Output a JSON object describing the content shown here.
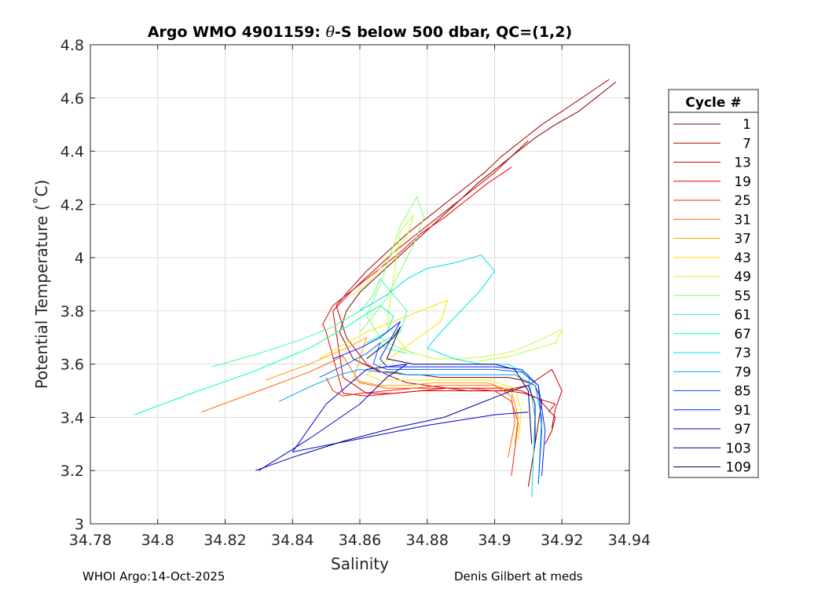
{
  "chart_data": {
    "type": "line",
    "title_prefix": "Argo WMO 4901159: ",
    "title_theta": "θ",
    "title_suffix": "-S below 500 dbar,  QC=(1,2)",
    "xlabel": "Salinity",
    "ylabel": "Potential Temperature (˚C)",
    "xlim": [
      34.78,
      34.94
    ],
    "ylim": [
      3.0,
      4.8
    ],
    "xticks": [
      34.78,
      34.8,
      34.82,
      34.84,
      34.86,
      34.88,
      34.9,
      34.92,
      34.94
    ],
    "yticks": [
      3,
      3.2,
      3.4,
      3.6,
      3.8,
      4,
      4.2,
      4.4,
      4.6,
      4.8
    ],
    "grid": true,
    "legend_title": "Cycle #",
    "legend_placement": "right-outside",
    "series": [
      {
        "name": "1",
        "color": "#800000",
        "x": [
          34.936,
          34.93,
          34.925,
          34.918,
          34.912,
          34.905,
          34.9,
          34.895,
          34.89,
          34.884,
          34.878,
          34.872,
          34.866,
          34.86,
          34.856,
          34.854,
          34.858,
          34.866,
          34.87,
          34.874,
          34.878,
          34.884,
          34.888,
          34.892,
          34.896,
          34.9,
          34.904,
          34.908,
          34.912,
          34.914,
          34.913,
          34.912,
          34.911,
          34.91
        ],
        "y": [
          4.66,
          4.6,
          4.55,
          4.5,
          4.45,
          4.38,
          4.33,
          4.28,
          4.22,
          4.15,
          4.08,
          4.01,
          3.94,
          3.87,
          3.8,
          3.72,
          3.62,
          3.57,
          3.57,
          3.56,
          3.56,
          3.55,
          3.55,
          3.55,
          3.55,
          3.55,
          3.55,
          3.54,
          3.52,
          3.46,
          3.38,
          3.3,
          3.22,
          3.14
        ]
      },
      {
        "name": "7",
        "color": "#b00000",
        "x": [
          34.934,
          34.927,
          34.92,
          34.914,
          34.908,
          34.902,
          34.897,
          34.892,
          34.886,
          34.88,
          34.874,
          34.868,
          34.862,
          34.857,
          34.853,
          34.856,
          34.862,
          34.868,
          34.874,
          34.88,
          34.886,
          34.892,
          34.898,
          34.904,
          34.909,
          34.913,
          34.918,
          34.917,
          34.915
        ],
        "y": [
          4.67,
          4.61,
          4.55,
          4.5,
          4.44,
          4.38,
          4.32,
          4.27,
          4.21,
          4.15,
          4.09,
          4.02,
          3.95,
          3.88,
          3.82,
          3.7,
          3.6,
          3.56,
          3.53,
          3.52,
          3.51,
          3.5,
          3.5,
          3.5,
          3.49,
          3.47,
          3.4,
          3.35,
          3.3
        ]
      },
      {
        "name": "13",
        "color": "#d00000",
        "x": [
          34.91,
          34.905,
          34.9,
          34.894,
          34.888,
          34.882,
          34.876,
          34.87,
          34.864,
          34.858,
          34.852,
          34.855,
          34.862,
          34.87,
          34.878,
          34.886,
          34.894,
          34.902,
          34.91,
          34.917,
          34.92,
          34.918,
          34.917
        ],
        "y": [
          4.44,
          4.38,
          4.32,
          4.26,
          4.2,
          4.14,
          4.08,
          4.02,
          3.95,
          3.88,
          3.8,
          3.55,
          3.49,
          3.49,
          3.5,
          3.5,
          3.5,
          3.5,
          3.52,
          3.58,
          3.5,
          3.43,
          3.36
        ]
      },
      {
        "name": "19",
        "color": "#f00000",
        "x": [
          34.905,
          34.898,
          34.891,
          34.885,
          34.878,
          34.872,
          34.865,
          34.859,
          34.852,
          34.849,
          34.85,
          34.855,
          34.862,
          34.87,
          34.878,
          34.886,
          34.894,
          34.902,
          34.908,
          34.913,
          34.918,
          34.916
        ],
        "y": [
          4.34,
          4.28,
          4.21,
          4.15,
          4.09,
          4.02,
          3.95,
          3.89,
          3.82,
          3.75,
          3.72,
          3.49,
          3.48,
          3.49,
          3.5,
          3.51,
          3.51,
          3.51,
          3.5,
          3.47,
          3.45,
          3.42
        ]
      },
      {
        "name": "25",
        "color": "#ff2000",
        "x": [
          34.85,
          34.852,
          34.855,
          34.86,
          34.868,
          34.876,
          34.884,
          34.892,
          34.9,
          34.905,
          34.907,
          34.906,
          34.905
        ],
        "y": [
          3.55,
          3.5,
          3.48,
          3.49,
          3.5,
          3.51,
          3.51,
          3.51,
          3.5,
          3.46,
          3.38,
          3.28,
          3.18
        ]
      },
      {
        "name": "31",
        "color": "#ff6000",
        "x": [
          34.813,
          34.83,
          34.845,
          34.855,
          34.86,
          34.868,
          34.876,
          34.884,
          34.892,
          34.9,
          34.905,
          34.906,
          34.904
        ],
        "y": [
          3.42,
          3.5,
          3.57,
          3.63,
          3.53,
          3.51,
          3.51,
          3.52,
          3.52,
          3.52,
          3.48,
          3.38,
          3.25
        ]
      },
      {
        "name": "37",
        "color": "#ffa000",
        "x": [
          34.832,
          34.845,
          34.856,
          34.862,
          34.858,
          34.866,
          34.874,
          34.882,
          34.89,
          34.898,
          34.905,
          34.907,
          34.906
        ],
        "y": [
          3.54,
          3.6,
          3.66,
          3.7,
          3.54,
          3.52,
          3.52,
          3.53,
          3.53,
          3.53,
          3.5,
          3.4,
          3.3
        ]
      },
      {
        "name": "43",
        "color": "#ffdf00",
        "x": [
          34.848,
          34.856,
          34.862,
          34.87,
          34.878,
          34.886,
          34.884,
          34.862,
          34.866,
          34.874,
          34.882,
          34.89,
          34.898,
          34.906,
          34.908,
          34.907
        ],
        "y": [
          3.62,
          3.68,
          3.72,
          3.76,
          3.8,
          3.84,
          3.76,
          3.56,
          3.54,
          3.54,
          3.54,
          3.54,
          3.54,
          3.51,
          3.42,
          3.32
        ]
      },
      {
        "name": "49",
        "color": "#c0ff30",
        "x": [
          34.858,
          34.862,
          34.866,
          34.87,
          34.874,
          34.876,
          34.872,
          34.868,
          34.874,
          34.882,
          34.89,
          34.898,
          34.906,
          34.915,
          34.92,
          34.918,
          34.905,
          34.895
        ],
        "y": [
          3.86,
          3.9,
          3.96,
          4.02,
          4.08,
          4.16,
          4.1,
          3.75,
          3.65,
          3.62,
          3.62,
          3.63,
          3.65,
          3.7,
          3.73,
          3.68,
          3.63,
          3.61
        ]
      },
      {
        "name": "55",
        "color": "#80ff70",
        "x": [
          34.86,
          34.864,
          34.868,
          34.872,
          34.876,
          34.879,
          34.877,
          34.872,
          34.866,
          34.862,
          34.866,
          34.87,
          34.876
        ],
        "y": [
          3.72,
          3.78,
          3.85,
          3.95,
          4.05,
          4.15,
          4.23,
          4.12,
          3.9,
          3.78,
          3.7,
          3.67,
          3.64
        ]
      },
      {
        "name": "61",
        "color": "#40ff90",
        "x": [
          34.816,
          34.83,
          34.842,
          34.852,
          34.86,
          34.864,
          34.866,
          34.87,
          34.874,
          34.872,
          34.866,
          34.868,
          34.874
        ],
        "y": [
          3.59,
          3.64,
          3.69,
          3.74,
          3.8,
          3.86,
          3.92,
          3.86,
          3.8,
          3.72,
          3.68,
          3.66,
          3.64
        ]
      },
      {
        "name": "67",
        "color": "#00ffb0",
        "x": [
          34.793,
          34.81,
          34.828,
          34.845,
          34.856,
          34.862,
          34.866,
          34.87,
          34.868,
          34.862
        ],
        "y": [
          3.41,
          3.49,
          3.57,
          3.66,
          3.74,
          3.79,
          3.82,
          3.78,
          3.72,
          3.68
        ]
      },
      {
        "name": "73",
        "color": "#00e0e0",
        "x": [
          34.86,
          34.868,
          34.874,
          34.88,
          34.888,
          34.896,
          34.9,
          34.896,
          34.89,
          34.884,
          34.88,
          34.888,
          34.896,
          34.904,
          34.91,
          34.912,
          34.911
        ],
        "y": [
          3.8,
          3.86,
          3.92,
          3.96,
          3.98,
          4.01,
          3.95,
          3.88,
          3.8,
          3.72,
          3.66,
          3.62,
          3.6,
          3.6,
          3.56,
          3.4,
          3.1
        ]
      },
      {
        "name": "79",
        "color": "#00a0ff",
        "x": [
          34.836,
          34.846,
          34.854,
          34.86,
          34.866,
          34.874,
          34.882,
          34.89,
          34.898,
          34.906,
          34.912,
          34.914,
          34.913
        ],
        "y": [
          3.46,
          3.52,
          3.56,
          3.58,
          3.57,
          3.56,
          3.56,
          3.56,
          3.56,
          3.56,
          3.52,
          3.4,
          3.15
        ]
      },
      {
        "name": "85",
        "color": "#0060ff",
        "x": [
          34.848,
          34.856,
          34.862,
          34.866,
          34.864,
          34.868,
          34.876,
          34.884,
          34.892,
          34.9,
          34.908,
          34.913,
          34.914,
          34.913
        ],
        "y": [
          3.55,
          3.6,
          3.64,
          3.68,
          3.6,
          3.58,
          3.58,
          3.58,
          3.58,
          3.58,
          3.57,
          3.52,
          3.35,
          3.15
        ]
      },
      {
        "name": "91",
        "color": "#0020ff",
        "x": [
          34.852,
          34.86,
          34.866,
          34.87,
          34.872,
          34.866,
          34.868,
          34.876,
          34.884,
          34.892,
          34.9,
          34.908,
          34.913,
          34.915,
          34.914
        ],
        "y": [
          3.62,
          3.66,
          3.7,
          3.74,
          3.76,
          3.62,
          3.59,
          3.59,
          3.59,
          3.59,
          3.59,
          3.58,
          3.52,
          3.35,
          3.18
        ]
      },
      {
        "name": "97",
        "color": "#0000d0",
        "x": [
          34.83,
          34.845,
          34.86,
          34.868,
          34.874,
          34.862,
          34.85,
          34.84,
          34.86,
          34.88,
          34.9,
          34.91
        ],
        "y": [
          3.2,
          3.32,
          3.45,
          3.55,
          3.6,
          3.58,
          3.45,
          3.27,
          3.32,
          3.37,
          3.41,
          3.42
        ]
      },
      {
        "name": "103",
        "color": "#000090",
        "x": [
          34.829,
          34.84,
          34.855,
          34.87,
          34.885,
          34.895,
          34.905,
          34.91,
          34.912,
          34.912
        ],
        "y": [
          3.2,
          3.25,
          3.31,
          3.36,
          3.4,
          3.45,
          3.5,
          3.52,
          3.45,
          3.3
        ]
      },
      {
        "name": "109",
        "color": "#000060",
        "x": [
          34.862,
          34.866,
          34.87,
          34.872,
          34.87,
          34.868,
          34.876,
          34.884,
          34.892,
          34.9,
          34.906,
          34.91,
          34.911
        ],
        "y": [
          3.62,
          3.66,
          3.7,
          3.74,
          3.68,
          3.62,
          3.6,
          3.6,
          3.6,
          3.6,
          3.58,
          3.5,
          3.3
        ]
      }
    ]
  },
  "footer": {
    "left": "WHOI Argo:14-Oct-2025",
    "right": "Denis Gilbert at meds"
  }
}
